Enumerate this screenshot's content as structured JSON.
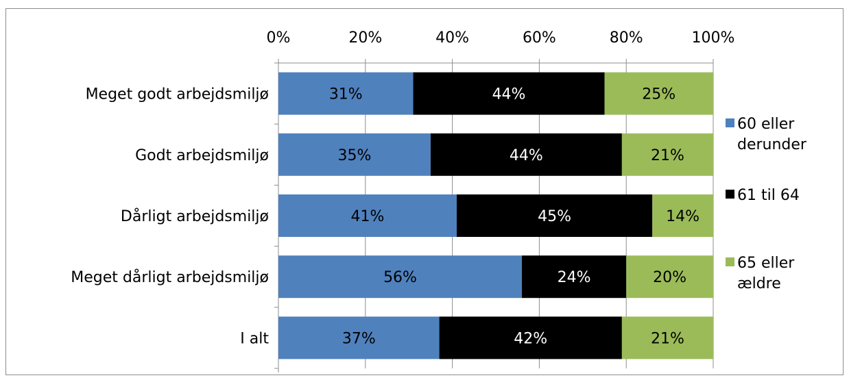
{
  "chart_data": {
    "type": "bar",
    "orientation": "horizontal",
    "stacked": "percent",
    "categories": [
      "Meget godt arbejdsmiljø",
      "Godt arbejdsmiljø",
      "Dårligt arbejdsmiljø",
      "Meget dårligt arbejdsmiljø",
      "I alt"
    ],
    "series": [
      {
        "name": "60 eller derunder",
        "color": "#4f81bd",
        "label_color": "#000000",
        "values": [
          31,
          35,
          41,
          56,
          37
        ],
        "labels": [
          "31%",
          "35%",
          "41%",
          "56%",
          "37%"
        ]
      },
      {
        "name": "61 til 64",
        "color": "#000000",
        "label_color": "#ffffff",
        "values": [
          44,
          44,
          45,
          24,
          42
        ],
        "labels": [
          "44%",
          "44%",
          "45%",
          "24%",
          "42%"
        ]
      },
      {
        "name": "65 eller ældre",
        "color": "#9bbb59",
        "label_color": "#000000",
        "values": [
          25,
          21,
          14,
          20,
          21
        ],
        "labels": [
          "25%",
          "21%",
          "14%",
          "20%",
          "21%"
        ]
      }
    ],
    "xticks": [
      "0%",
      "20%",
      "40%",
      "60%",
      "80%",
      "100%"
    ],
    "xlim": [
      0,
      100
    ],
    "axis_position": "top",
    "grid": true,
    "legend": "right",
    "title": "",
    "xlabel": "",
    "ylabel": ""
  }
}
